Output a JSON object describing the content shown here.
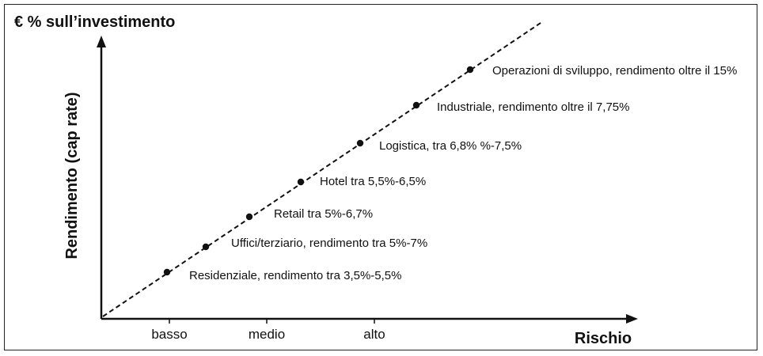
{
  "chart_data": {
    "type": "scatter",
    "title": "€ % sull’investimento",
    "ylabel": "Rendimento (cap rate)",
    "xlabel": "Rischio",
    "x_ticks": [
      "basso",
      "medio",
      "alto"
    ],
    "trend_line": "dashed",
    "points": [
      {
        "label": "Residenziale, rendimento tra 3,5%-5,5%"
      },
      {
        "label": "Uffici/terziario, rendimento tra 5%-7%"
      },
      {
        "label": "Retail tra 5%-6,7%"
      },
      {
        "label": "Hotel tra 5,5%-6,5%"
      },
      {
        "label": "Logistica, tra 6,8% %-7,5%"
      },
      {
        "label": "Industriale, rendimento oltre il 7,75%"
      },
      {
        "label": "Operazioni di sviluppo, rendimento oltre il 15%"
      }
    ]
  }
}
